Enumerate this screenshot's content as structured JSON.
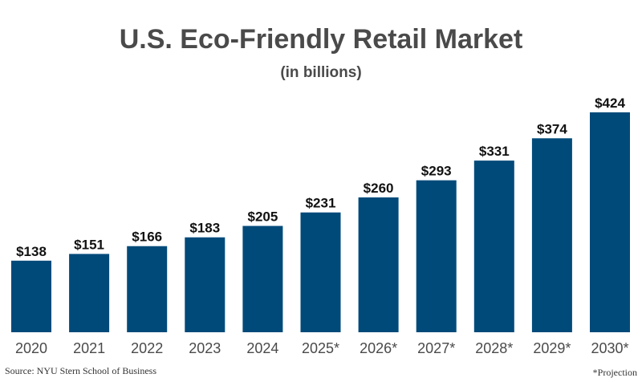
{
  "chart_data": {
    "type": "bar",
    "title": "U.S. Eco-Friendly Retail Market",
    "subtitle": "(in billions)",
    "categories": [
      "2020",
      "2021",
      "2022",
      "2023",
      "2024",
      "2025*",
      "2026*",
      "2027*",
      "2028*",
      "2029*",
      "2030*"
    ],
    "values": [
      138,
      151,
      166,
      183,
      205,
      231,
      260,
      293,
      331,
      374,
      424
    ],
    "data_labels": [
      "$138",
      "$151",
      "$166",
      "$183",
      "$205",
      "$231",
      "$260",
      "$293",
      "$331",
      "$374",
      "$424"
    ],
    "xlabel": "",
    "ylabel": "",
    "ylim": [
      0,
      424
    ],
    "grid": false,
    "bar_color": "#004a7a",
    "text_color": "#4a4a4a"
  },
  "footer": {
    "source": "Source: NYU Stern School of Business",
    "note": "*Projection"
  }
}
